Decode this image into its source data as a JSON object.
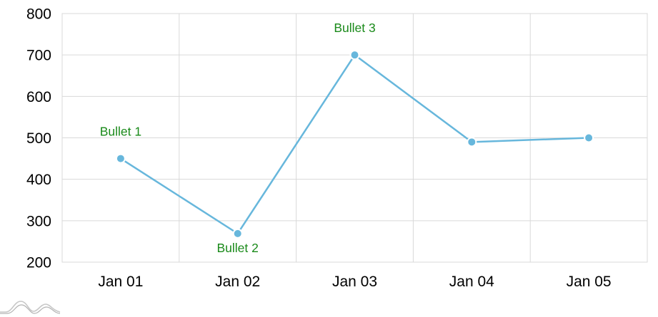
{
  "chart_data": {
    "type": "line",
    "categories": [
      "Jan 01",
      "Jan 02",
      "Jan 03",
      "Jan 04",
      "Jan 05"
    ],
    "series": [
      {
        "values": [
          450,
          269,
          700,
          490,
          500
        ],
        "color": "#67b7dc"
      }
    ],
    "point_labels": [
      "Bullet 1",
      "Bullet 2",
      "Bullet 3",
      "",
      ""
    ],
    "point_label_color": "#1a8a1a",
    "ylim": [
      200,
      800
    ],
    "yticks": [
      "800",
      "700",
      "600",
      "500",
      "400",
      "300",
      "200"
    ],
    "grid": true,
    "title": "",
    "xlabel": "",
    "ylabel": ""
  },
  "watermark": {
    "icon": "amcharts-logo-icon",
    "color": "#b3b3b3"
  }
}
